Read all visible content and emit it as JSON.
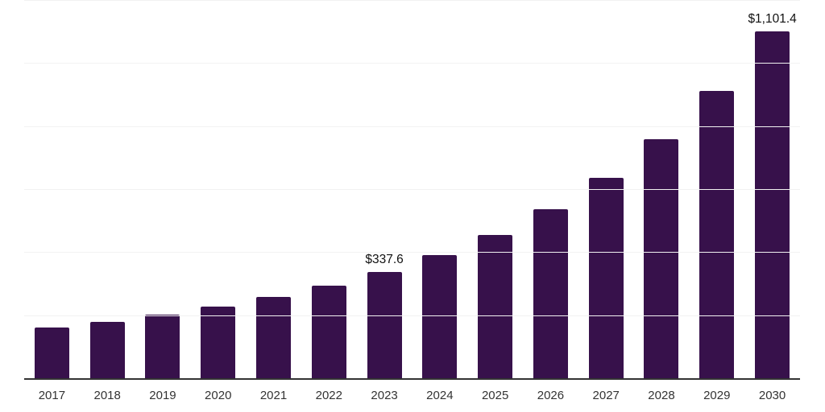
{
  "page": {
    "background_color": "#ffffff"
  },
  "chart_data": {
    "type": "bar",
    "title": "",
    "xlabel": "",
    "ylabel": "",
    "categories": [
      "2017",
      "2018",
      "2019",
      "2020",
      "2021",
      "2022",
      "2023",
      "2024",
      "2025",
      "2026",
      "2027",
      "2028",
      "2029",
      "2030"
    ],
    "values": [
      160.9,
      178.7,
      201.7,
      227.2,
      257.9,
      293.6,
      337.6,
      390.6,
      454.5,
      536.2,
      635.7,
      758.3,
      911.5,
      1101.4
    ],
    "value_prefix": "$",
    "annotations": [
      {
        "category": "2023",
        "text": "$337.6"
      },
      {
        "category": "2030",
        "text": "$1,101.4"
      }
    ],
    "ylim": [
      0,
      1200
    ],
    "gridline_step": 200,
    "grid": "horizontal",
    "legend": "none",
    "colors": {
      "bar": "#37114B",
      "gridline": "#f2f2f2",
      "axis": "#333333",
      "tick_label": "#333333",
      "data_label": "#111111"
    }
  }
}
